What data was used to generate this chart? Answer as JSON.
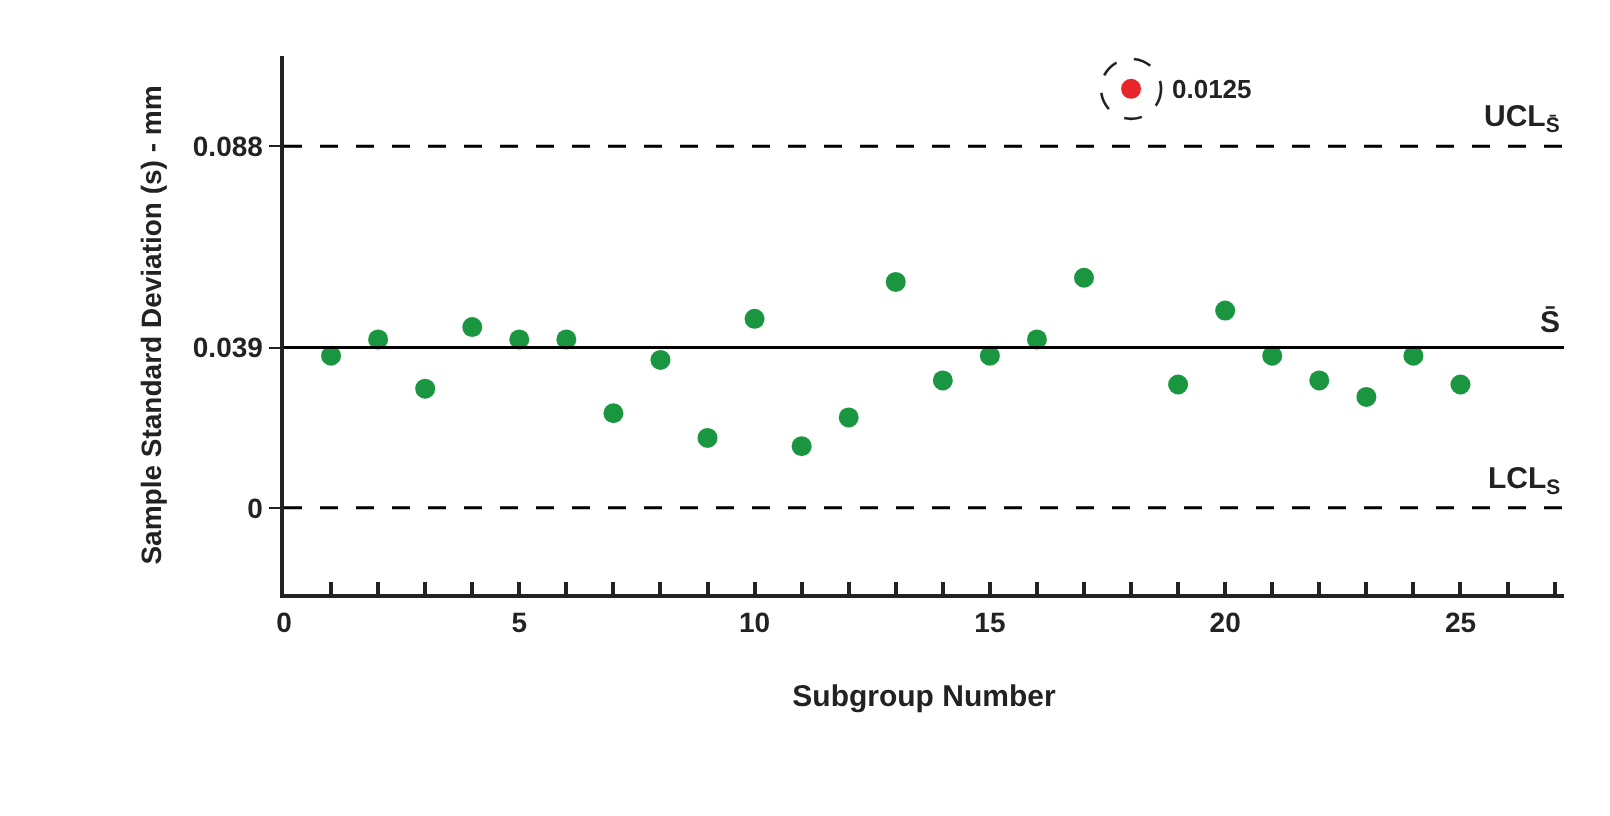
{
  "chart_data": {
    "type": "scatter",
    "xlabel": "Subgroup Number",
    "ylabel": "Sample Standard Deviation (s) - mm",
    "x": [
      1,
      2,
      3,
      4,
      5,
      6,
      7,
      8,
      9,
      10,
      11,
      12,
      13,
      14,
      15,
      16,
      17,
      18,
      19,
      20,
      21,
      22,
      23,
      24,
      25
    ],
    "series": [
      {
        "colors": [
          "#1a9641",
          "#1a9641",
          "#1a9641",
          "#1a9641",
          "#1a9641",
          "#1a9641",
          "#1a9641",
          "#1a9641",
          "#1a9641",
          "#1a9641",
          "#1a9641",
          "#1a9641",
          "#1a9641",
          "#1a9641",
          "#1a9641",
          "#1a9641",
          "#1a9641",
          "#e8262a",
          "#1a9641",
          "#1a9641",
          "#1a9641",
          "#1a9641",
          "#1a9641",
          "#1a9641",
          "#1a9641"
        ],
        "values": [
          0.037,
          0.041,
          0.029,
          0.044,
          0.041,
          0.041,
          0.023,
          0.036,
          0.017,
          0.046,
          0.015,
          0.022,
          0.055,
          0.031,
          0.037,
          0.041,
          0.056,
          0.102,
          0.03,
          0.048,
          0.037,
          0.031,
          0.027,
          0.037,
          0.03
        ]
      }
    ],
    "xlim": [
      0,
      27.2
    ],
    "xticks": [
      0,
      {
        "value": 1,
        "label": null
      },
      {
        "value": 2,
        "label": null
      },
      {
        "value": 3,
        "label": null
      },
      {
        "value": 4,
        "label": null
      },
      5,
      {
        "value": 6,
        "label": null
      },
      {
        "value": 7,
        "label": null
      },
      {
        "value": 8,
        "label": null
      },
      {
        "value": 9,
        "label": null
      },
      10,
      {
        "value": 11,
        "label": null
      },
      {
        "value": 12,
        "label": null
      },
      {
        "value": 13,
        "label": null
      },
      {
        "value": 14,
        "label": null
      },
      15,
      {
        "value": 16,
        "label": null
      },
      {
        "value": 17,
        "label": null
      },
      {
        "value": 18,
        "label": null
      },
      {
        "value": 19,
        "label": null
      },
      20,
      {
        "value": 21,
        "label": null
      },
      {
        "value": 22,
        "label": null
      },
      {
        "value": 23,
        "label": null
      },
      {
        "value": 24,
        "label": null
      },
      25,
      {
        "value": 26,
        "label": null
      },
      {
        "value": 27,
        "label": null
      }
    ],
    "ylim": [
      -0.021,
      0.11
    ],
    "yticks": [
      0,
      0.039,
      0.088
    ],
    "ref_lines": [
      {
        "axis": "y",
        "value": 0.088,
        "label": "UCL$_{S̄}$",
        "line_style": "dashed",
        "color": "#000000"
      },
      {
        "axis": "y",
        "value": 0.039,
        "label": "S̄",
        "line_style": "solid",
        "color": "#000000"
      },
      {
        "axis": "y",
        "value": 0,
        "label": "LCL$_{S}$",
        "line_style": "dashed",
        "color": "#000000"
      }
    ],
    "annotations": [
      {
        "text": "0.0125",
        "x": 18,
        "y": 0.102
      }
    ],
    "marker": "circle",
    "grid": false
  }
}
